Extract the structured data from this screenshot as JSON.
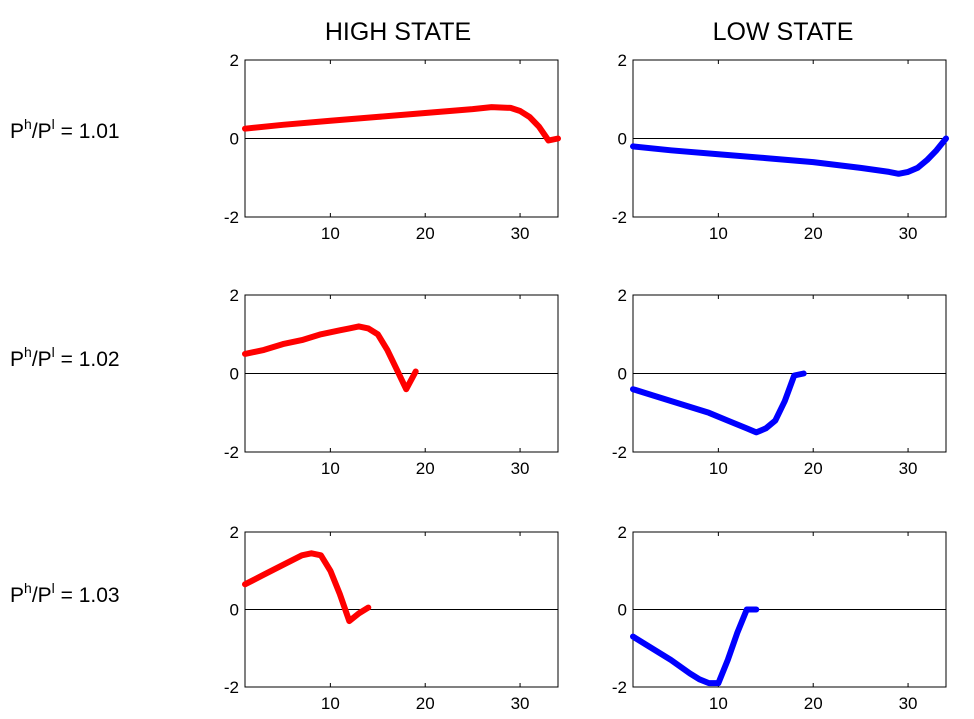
{
  "column_titles": [
    "HIGH STATE",
    "LOW STATE"
  ],
  "row_labels": [
    {
      "base": "P",
      "sup1": "h",
      "mid": "/P",
      "sup2": "l",
      "rest": " = 1.01"
    },
    {
      "base": "P",
      "sup1": "h",
      "mid": "/P",
      "sup2": "l",
      "rest": " = 1.02"
    },
    {
      "base": "P",
      "sup1": "h",
      "mid": "/P",
      "sup2": "l",
      "rest": " = 1.03"
    }
  ],
  "colors": {
    "high": "#ff0000",
    "low": "#0000ff",
    "axis": "#000000",
    "zero_line": "#000000"
  },
  "chart_data": [
    {
      "type": "line",
      "panel": "high-1.01",
      "series_color": "#ff0000",
      "xlim": [
        1,
        34
      ],
      "ylim": [
        -2,
        2
      ],
      "xticks": [
        10,
        20,
        30
      ],
      "yticks": [
        -2,
        0,
        2
      ],
      "x": [
        1,
        5,
        10,
        15,
        20,
        25,
        27,
        29,
        30,
        31,
        32,
        33,
        34
      ],
      "y": [
        0.25,
        0.35,
        0.45,
        0.55,
        0.65,
        0.75,
        0.8,
        0.78,
        0.7,
        0.55,
        0.3,
        -0.05,
        0.0
      ]
    },
    {
      "type": "line",
      "panel": "low-1.01",
      "series_color": "#0000ff",
      "xlim": [
        1,
        34
      ],
      "ylim": [
        -2,
        2
      ],
      "xticks": [
        10,
        20,
        30
      ],
      "yticks": [
        -2,
        0,
        2
      ],
      "x": [
        1,
        5,
        10,
        15,
        20,
        25,
        28,
        29,
        30,
        31,
        32,
        33,
        34
      ],
      "y": [
        -0.2,
        -0.3,
        -0.4,
        -0.5,
        -0.6,
        -0.75,
        -0.85,
        -0.9,
        -0.85,
        -0.75,
        -0.55,
        -0.3,
        0.0
      ]
    },
    {
      "type": "line",
      "panel": "high-1.02",
      "series_color": "#ff0000",
      "xlim": [
        1,
        34
      ],
      "ylim": [
        -2,
        2
      ],
      "xticks": [
        10,
        20,
        30
      ],
      "yticks": [
        -2,
        0,
        2
      ],
      "x": [
        1,
        3,
        5,
        7,
        9,
        11,
        12,
        13,
        14,
        15,
        16,
        17,
        18,
        19
      ],
      "y": [
        0.5,
        0.6,
        0.75,
        0.85,
        1.0,
        1.1,
        1.15,
        1.2,
        1.15,
        1.0,
        0.6,
        0.1,
        -0.4,
        0.05
      ]
    },
    {
      "type": "line",
      "panel": "low-1.02",
      "series_color": "#0000ff",
      "xlim": [
        1,
        34
      ],
      "ylim": [
        -2,
        2
      ],
      "xticks": [
        10,
        20,
        30
      ],
      "yticks": [
        -2,
        0,
        2
      ],
      "x": [
        1,
        3,
        5,
        7,
        9,
        11,
        12,
        13,
        14,
        15,
        16,
        17,
        18,
        19
      ],
      "y": [
        -0.4,
        -0.55,
        -0.7,
        -0.85,
        -1.0,
        -1.2,
        -1.3,
        -1.4,
        -1.5,
        -1.4,
        -1.2,
        -0.7,
        -0.05,
        0.0
      ]
    },
    {
      "type": "line",
      "panel": "high-1.03",
      "series_color": "#ff0000",
      "xlim": [
        1,
        34
      ],
      "ylim": [
        -2,
        2
      ],
      "xticks": [
        10,
        20,
        30
      ],
      "yticks": [
        -2,
        0,
        2
      ],
      "x": [
        1,
        3,
        5,
        7,
        8,
        9,
        10,
        11,
        12,
        13,
        14
      ],
      "y": [
        0.65,
        0.9,
        1.15,
        1.4,
        1.45,
        1.4,
        1.0,
        0.4,
        -0.3,
        -0.1,
        0.05
      ]
    },
    {
      "type": "line",
      "panel": "low-1.03",
      "series_color": "#0000ff",
      "xlim": [
        1,
        34
      ],
      "ylim": [
        -2,
        2
      ],
      "xticks": [
        10,
        20,
        30
      ],
      "yticks": [
        -2,
        0,
        2
      ],
      "x": [
        1,
        3,
        5,
        7,
        8,
        9,
        10,
        11,
        12,
        13,
        14
      ],
      "y": [
        -0.7,
        -1.0,
        -1.3,
        -1.65,
        -1.8,
        -1.9,
        -1.9,
        -1.3,
        -0.6,
        0.0,
        0.0
      ]
    }
  ]
}
